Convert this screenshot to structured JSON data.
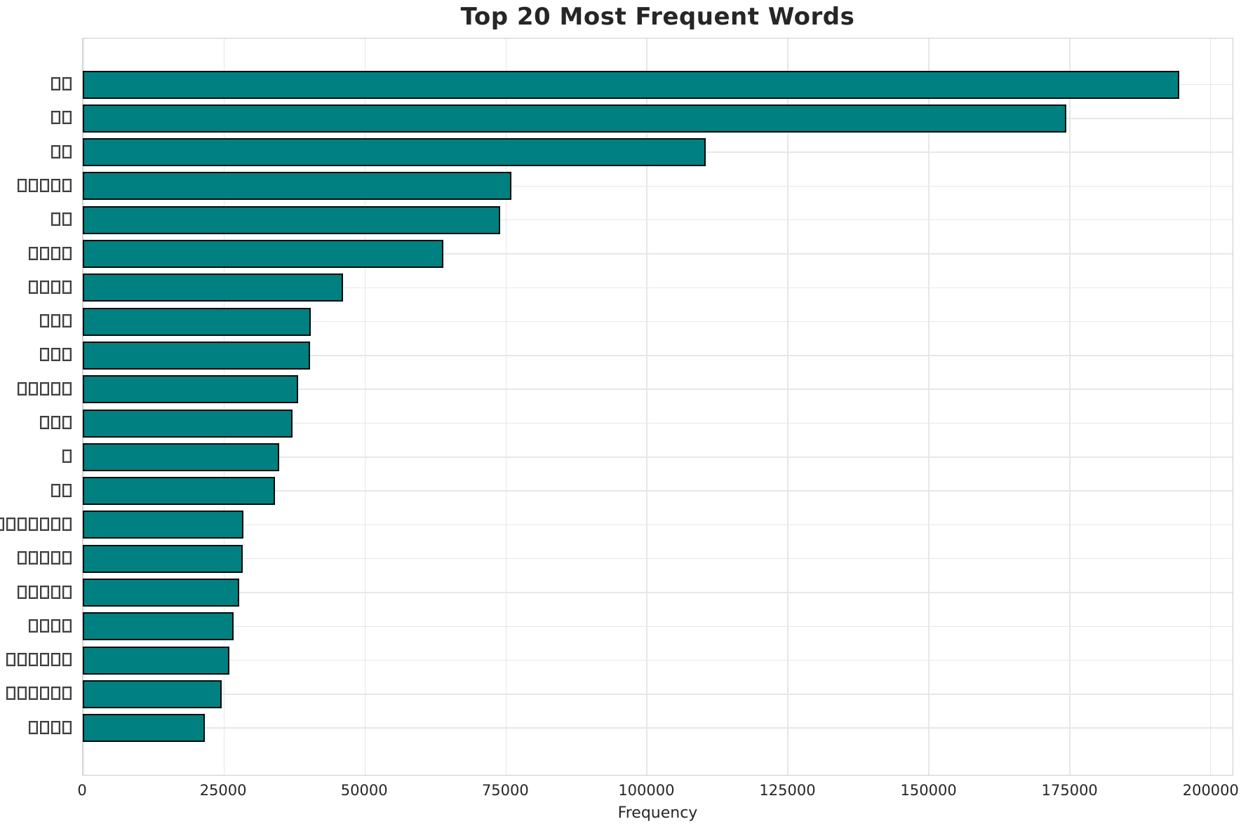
{
  "chart_data": {
    "type": "bar",
    "orientation": "horizontal",
    "title": "Top 20 Most Frequent Words",
    "xlabel": "Frequency",
    "ylabel": "",
    "categories": [
      "□□",
      "□□",
      "□□",
      "□□□□□",
      "□□",
      "□□□□",
      "□□□□",
      "□□□",
      "□□□",
      "□□□□□",
      "□□□",
      "□",
      "□□",
      "□□□□□□□",
      "□□□□□",
      "□□□□□",
      "□□□□",
      "□□□□□□",
      "□□□□□□",
      "□□□□"
    ],
    "values": [
      194500,
      174500,
      110500,
      76000,
      74000,
      64000,
      46200,
      40400,
      40300,
      38200,
      37200,
      34800,
      34100,
      28500,
      28400,
      27800,
      26700,
      26000,
      24700,
      21600
    ],
    "xticks": [
      0,
      25000,
      50000,
      75000,
      100000,
      125000,
      150000,
      175000,
      200000
    ],
    "xlim": [
      0,
      204000
    ],
    "grid": true,
    "legend": false,
    "colors": {
      "bar_fill": "#008080",
      "bar_edge": "#0a0a0a",
      "grid": "#e7e7e7",
      "spine": "#cccccc",
      "text": "#262626"
    }
  }
}
